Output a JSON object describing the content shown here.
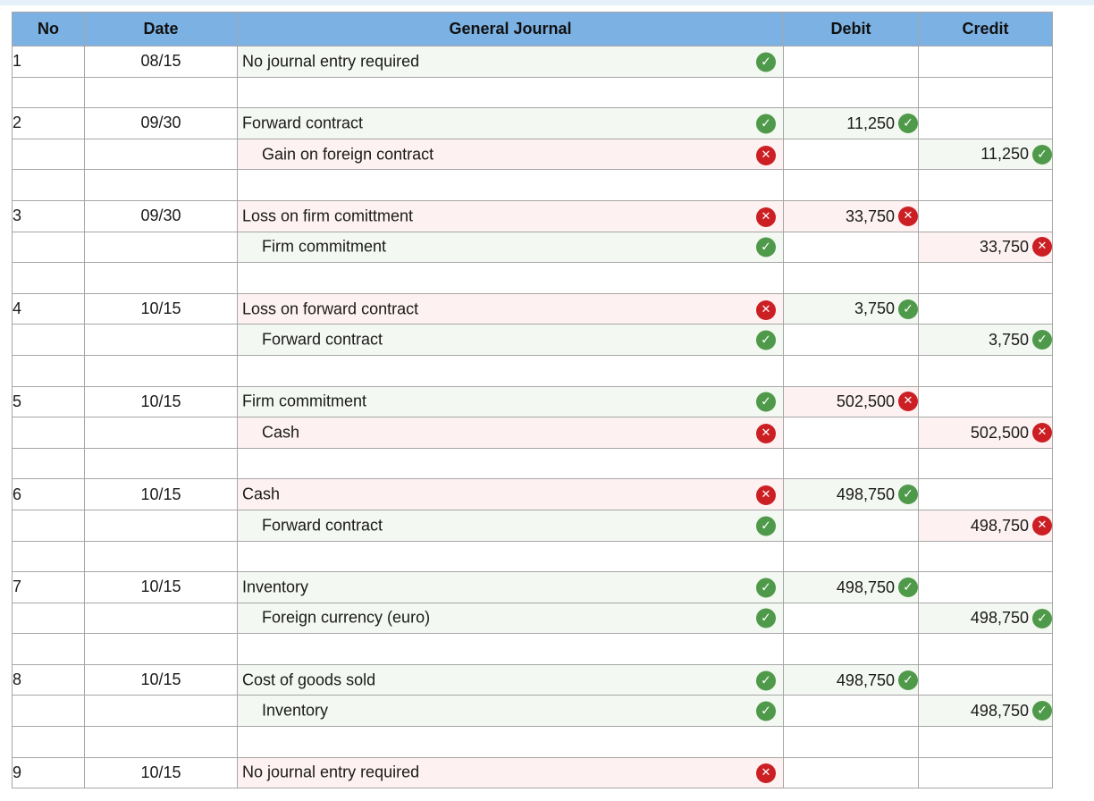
{
  "headers": {
    "no": "No",
    "date": "Date",
    "journal": "General Journal",
    "debit": "Debit",
    "credit": "Credit"
  },
  "rows": [
    {
      "no": "1",
      "date": "08/15",
      "account": "No journal entry required",
      "indent": false,
      "status": "correct",
      "debit": "",
      "debit_status": "",
      "credit": "",
      "credit_status": ""
    },
    {
      "blank": true
    },
    {
      "no": "2",
      "date": "09/30",
      "account": "Forward contract",
      "indent": false,
      "status": "correct",
      "debit": "11,250",
      "debit_status": "correct",
      "credit": "",
      "credit_status": ""
    },
    {
      "no": "",
      "date": "",
      "account": "Gain on foreign contract",
      "indent": true,
      "status": "incorrect",
      "debit": "",
      "debit_status": "",
      "credit": "11,250",
      "credit_status": "correct"
    },
    {
      "blank": true
    },
    {
      "no": "3",
      "date": "09/30",
      "account": "Loss on firm comittment",
      "indent": false,
      "status": "incorrect",
      "debit": "33,750",
      "debit_status": "incorrect",
      "credit": "",
      "credit_status": ""
    },
    {
      "no": "",
      "date": "",
      "account": "Firm commitment",
      "indent": true,
      "status": "correct",
      "debit": "",
      "debit_status": "",
      "credit": "33,750",
      "credit_status": "incorrect"
    },
    {
      "blank": true
    },
    {
      "no": "4",
      "date": "10/15",
      "account": "Loss on forward contract",
      "indent": false,
      "status": "incorrect",
      "debit": "3,750",
      "debit_status": "correct",
      "credit": "",
      "credit_status": ""
    },
    {
      "no": "",
      "date": "",
      "account": "Forward contract",
      "indent": true,
      "status": "correct",
      "debit": "",
      "debit_status": "",
      "credit": "3,750",
      "credit_status": "correct"
    },
    {
      "blank": true
    },
    {
      "no": "5",
      "date": "10/15",
      "account": "Firm commitment",
      "indent": false,
      "status": "correct",
      "debit": "502,500",
      "debit_status": "incorrect",
      "credit": "",
      "credit_status": ""
    },
    {
      "no": "",
      "date": "",
      "account": "Cash",
      "indent": true,
      "status": "incorrect",
      "debit": "",
      "debit_status": "",
      "credit": "502,500",
      "credit_status": "incorrect"
    },
    {
      "blank": true
    },
    {
      "no": "6",
      "date": "10/15",
      "account": "Cash",
      "indent": false,
      "status": "incorrect",
      "debit": "498,750",
      "debit_status": "correct",
      "credit": "",
      "credit_status": ""
    },
    {
      "no": "",
      "date": "",
      "account": "Forward contract",
      "indent": true,
      "status": "correct",
      "debit": "",
      "debit_status": "",
      "credit": "498,750",
      "credit_status": "incorrect"
    },
    {
      "blank": true
    },
    {
      "no": "7",
      "date": "10/15",
      "account": "Inventory",
      "indent": false,
      "status": "correct",
      "debit": "498,750",
      "debit_status": "correct",
      "credit": "",
      "credit_status": ""
    },
    {
      "no": "",
      "date": "",
      "account": "Foreign currency (euro)",
      "indent": true,
      "status": "correct",
      "debit": "",
      "debit_status": "",
      "credit": "498,750",
      "credit_status": "correct"
    },
    {
      "blank": true
    },
    {
      "no": "8",
      "date": "10/15",
      "account": "Cost of goods sold",
      "indent": false,
      "status": "correct",
      "debit": "498,750",
      "debit_status": "correct",
      "credit": "",
      "credit_status": ""
    },
    {
      "no": "",
      "date": "",
      "account": "Inventory",
      "indent": true,
      "status": "correct",
      "debit": "",
      "debit_status": "",
      "credit": "498,750",
      "credit_status": "correct"
    },
    {
      "blank": true
    },
    {
      "no": "9",
      "date": "10/15",
      "account": "No journal entry required",
      "indent": false,
      "status": "incorrect",
      "debit": "",
      "debit_status": "",
      "credit": "",
      "credit_status": ""
    }
  ],
  "icons": {
    "correct": "check-circle-icon",
    "incorrect": "x-circle-icon"
  },
  "colors": {
    "header_bg": "#7cb1e3",
    "correct": "#4f9a4a",
    "incorrect": "#cc1f24",
    "correct_bg": "#f4f8f2",
    "incorrect_bg": "#fdf1f1"
  }
}
